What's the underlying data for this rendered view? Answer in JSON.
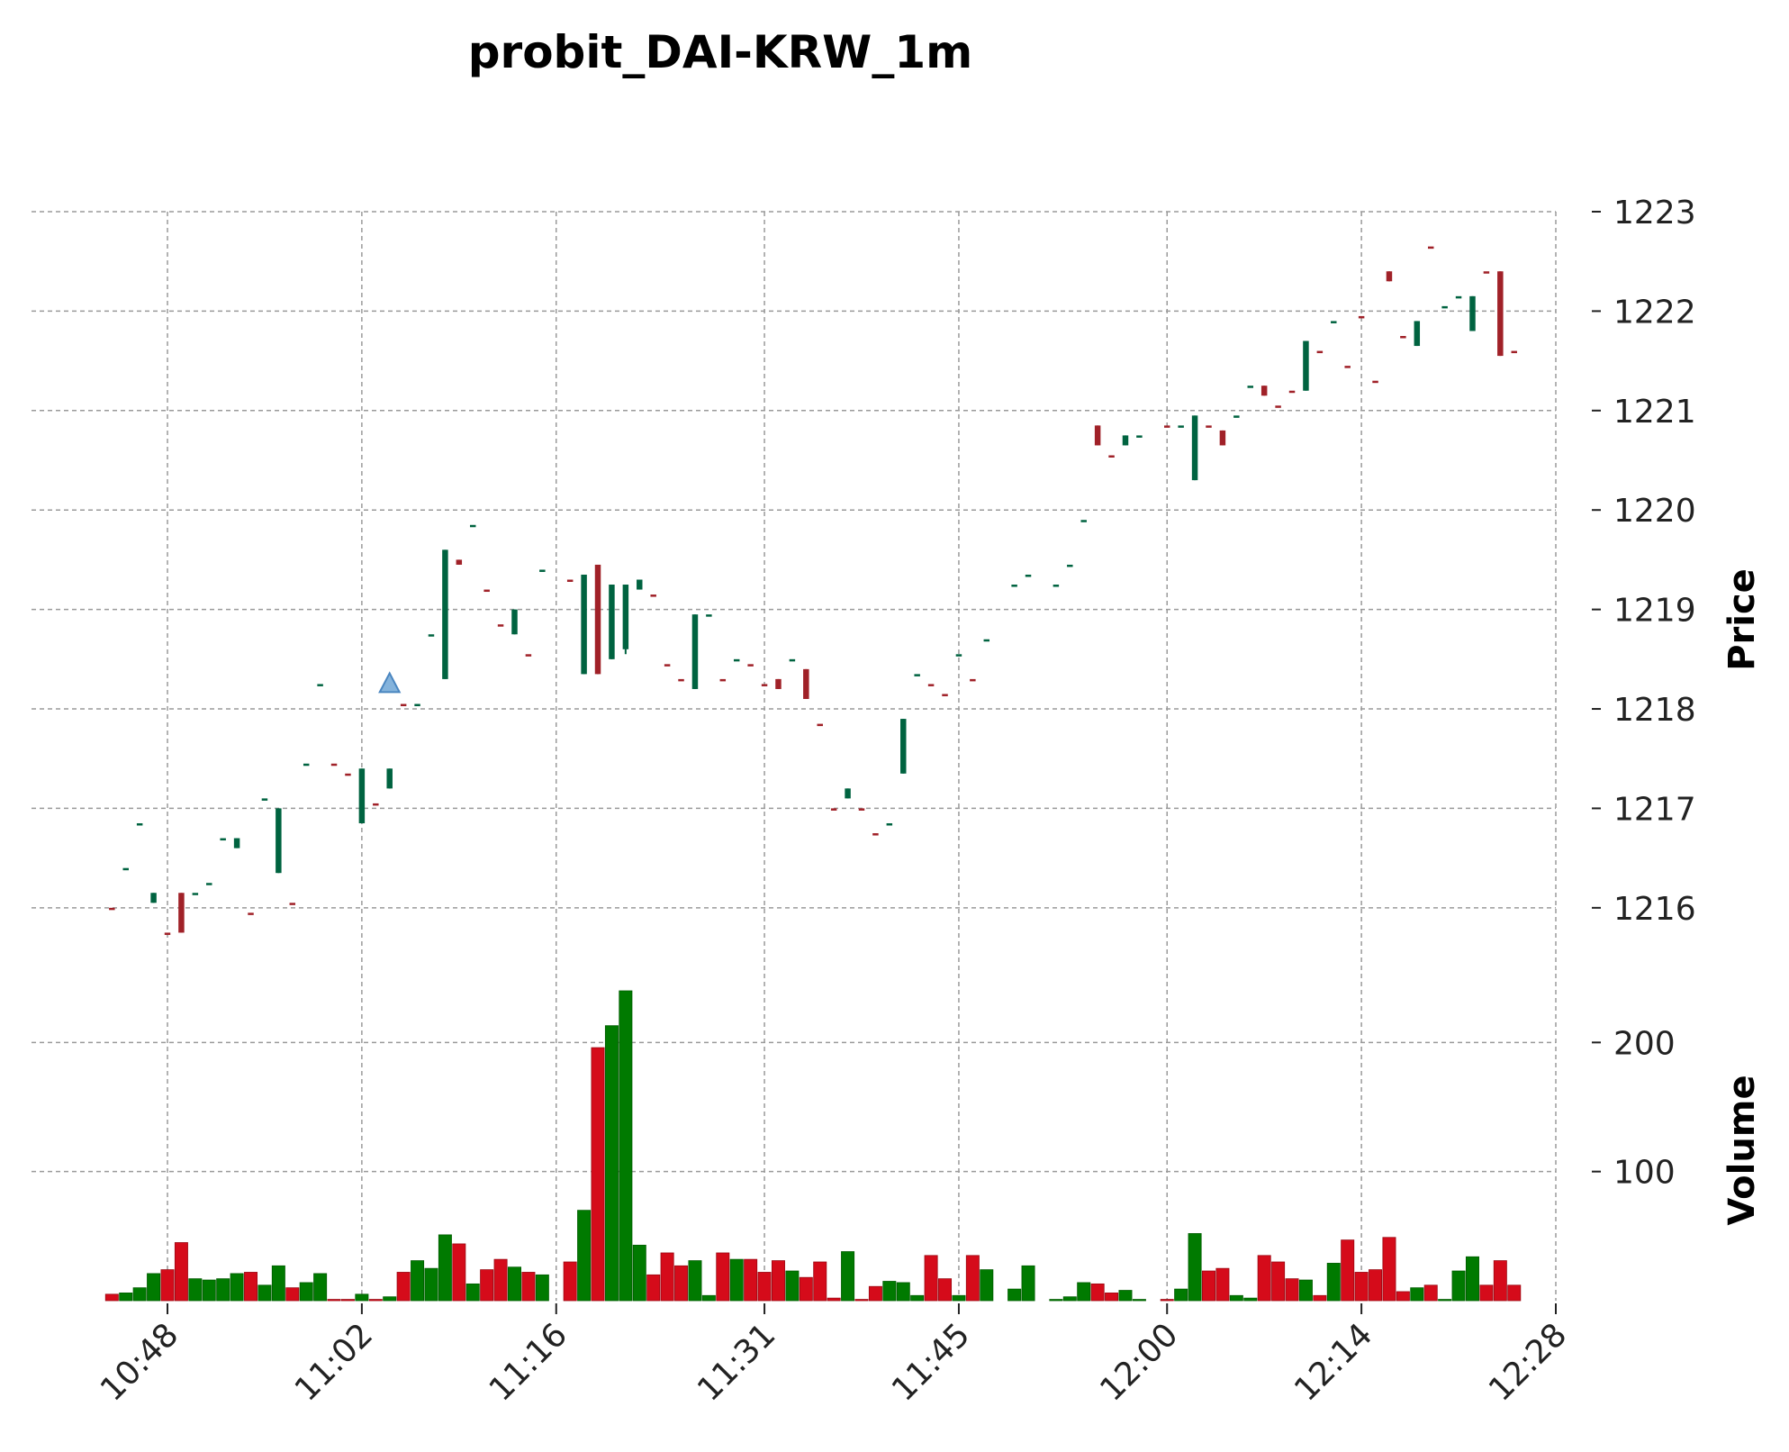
{
  "chart_data": {
    "type": "candlestick",
    "title": "probit_DAI-KRW_1m",
    "ylabel_price": "Price",
    "ylabel_volume": "Volume",
    "price_ylim": [
      1215.6,
      1223.0
    ],
    "volume_ylim": [
      0,
      240
    ],
    "price_ticks": [
      "1216",
      "1217",
      "1218",
      "1219",
      "1220",
      "1221",
      "1222",
      "1223"
    ],
    "volume_ticks": [
      "100",
      "200"
    ],
    "x_ticks": [
      "10:48",
      "11:02",
      "11:16",
      "11:31",
      "11:45",
      "12:00",
      "12:14",
      "12:28"
    ],
    "x_tick_minutes": [
      648,
      662,
      676,
      691,
      705,
      720,
      734,
      748
    ],
    "grid": true,
    "colors": {
      "up": "#006340",
      "down": "#a02128",
      "vol_up": "#007a00",
      "vol_down": "#d50b1a",
      "marker": "#6fa6d6"
    },
    "marker": {
      "type": "triangle-up",
      "time": "11:04",
      "price": 1218.25
    },
    "candles": [
      [
        "10:44",
        1216,
        1216,
        1216,
        1216,
        5,
        "d"
      ],
      [
        "10:45",
        1216.4,
        1216.4,
        1216.4,
        1216.4,
        6,
        "u"
      ],
      [
        "10:46",
        1216.85,
        1216.85,
        1216.85,
        1216.85,
        10,
        "u"
      ],
      [
        "10:47",
        1216.05,
        1216.15,
        1216.05,
        1216.15,
        21,
        "u"
      ],
      [
        "10:48",
        1215.75,
        1215.75,
        1215.75,
        1215.75,
        24,
        "d"
      ],
      [
        "10:49",
        1216.15,
        1216.15,
        1215.75,
        1215.75,
        45,
        "d"
      ],
      [
        "10:50",
        1216.15,
        1216.15,
        1216.15,
        1216.15,
        17,
        "u"
      ],
      [
        "10:51",
        1216.25,
        1216.25,
        1216.25,
        1216.25,
        16,
        "u"
      ],
      [
        "10:52",
        1216.7,
        1216.7,
        1216.7,
        1216.7,
        17,
        "u"
      ],
      [
        "10:53",
        1216.6,
        1216.7,
        1216.6,
        1216.7,
        21,
        "u"
      ],
      [
        "10:54",
        1215.95,
        1215.95,
        1215.95,
        1215.95,
        22,
        "d"
      ],
      [
        "10:55",
        1217.1,
        1217.1,
        1217.1,
        1217.1,
        12,
        "u"
      ],
      [
        "10:56",
        1216.35,
        1217.0,
        1216.35,
        1217.0,
        27,
        "u"
      ],
      [
        "10:57",
        1216.05,
        1216.05,
        1216.05,
        1216.05,
        10,
        "d"
      ],
      [
        "10:58",
        1217.45,
        1217.45,
        1217.45,
        1217.45,
        14,
        "u"
      ],
      [
        "10:59",
        1218.25,
        1218.25,
        1218.25,
        1218.25,
        21,
        "u"
      ],
      [
        "11:00",
        1217.45,
        1217.45,
        1217.45,
        1217.45,
        1,
        "d"
      ],
      [
        "11:01",
        1217.35,
        1217.35,
        1217.35,
        1217.35,
        1,
        "d"
      ],
      [
        "11:02",
        1216.85,
        1217.4,
        1216.85,
        1217.4,
        5,
        "u"
      ],
      [
        "11:03",
        1217.05,
        1217.05,
        1217.05,
        1217.05,
        1,
        "d"
      ],
      [
        "11:04",
        1217.2,
        1217.4,
        1217.2,
        1217.4,
        3,
        "u"
      ],
      [
        "11:05",
        1218.05,
        1218.05,
        1218.05,
        1218.05,
        22,
        "d"
      ],
      [
        "11:06",
        1218.05,
        1218.05,
        1218.05,
        1218.05,
        31,
        "u"
      ],
      [
        "11:07",
        1218.75,
        1218.75,
        1218.75,
        1218.75,
        25,
        "u"
      ],
      [
        "11:08",
        1218.3,
        1219.6,
        1218.3,
        1219.6,
        51,
        "u"
      ],
      [
        "11:09",
        1219.45,
        1219.5,
        1219.45,
        1219.5,
        44,
        "d"
      ],
      [
        "11:10",
        1219.85,
        1219.85,
        1219.85,
        1219.85,
        13,
        "u"
      ],
      [
        "11:11",
        1219.2,
        1219.2,
        1219.2,
        1219.2,
        24,
        "d"
      ],
      [
        "11:12",
        1218.85,
        1218.85,
        1218.85,
        1218.85,
        32,
        "d"
      ],
      [
        "11:13",
        1218.75,
        1219.0,
        1218.75,
        1219.0,
        26,
        "u"
      ],
      [
        "11:14",
        1218.55,
        1218.55,
        1218.55,
        1218.55,
        22,
        "d"
      ],
      [
        "11:15",
        1219.4,
        1219.4,
        1219.4,
        1219.4,
        20,
        "u"
      ],
      [
        "11:17",
        1219.3,
        1219.3,
        1219.3,
        1219.3,
        30,
        "d"
      ],
      [
        "11:18",
        1218.35,
        1219.35,
        1218.35,
        1219.35,
        70,
        "u"
      ],
      [
        "11:19",
        1219.45,
        1219.45,
        1218.35,
        1218.35,
        196,
        "d"
      ],
      [
        "11:20",
        1218.5,
        1219.25,
        1218.5,
        1219.25,
        213,
        "u"
      ],
      [
        "11:21",
        1219.25,
        1219.25,
        1218.55,
        1218.6,
        240,
        "u"
      ],
      [
        "11:22",
        1219.3,
        1219.3,
        1219.2,
        1219.2,
        43,
        "u"
      ],
      [
        "11:23",
        1219.15,
        1219.15,
        1219.15,
        1219.15,
        20,
        "d"
      ],
      [
        "11:24",
        1218.45,
        1218.45,
        1218.45,
        1218.45,
        37,
        "d"
      ],
      [
        "11:25",
        1218.3,
        1218.3,
        1218.3,
        1218.3,
        27,
        "d"
      ],
      [
        "11:26",
        1218.2,
        1218.95,
        1218.2,
        1218.95,
        31,
        "u"
      ],
      [
        "11:27",
        1218.95,
        1218.95,
        1218.95,
        1218.95,
        4,
        "u"
      ],
      [
        "11:28",
        1218.3,
        1218.3,
        1218.3,
        1218.3,
        37,
        "d"
      ],
      [
        "11:29",
        1218.5,
        1218.5,
        1218.5,
        1218.5,
        32,
        "u"
      ],
      [
        "11:30",
        1218.45,
        1218.45,
        1218.45,
        1218.45,
        32,
        "d"
      ],
      [
        "11:31",
        1218.25,
        1218.25,
        1218.25,
        1218.25,
        22,
        "d"
      ],
      [
        "11:32",
        1218.3,
        1218.3,
        1218.2,
        1218.2,
        31,
        "d"
      ],
      [
        "11:33",
        1218.5,
        1218.5,
        1218.5,
        1218.5,
        23,
        "u"
      ],
      [
        "11:34",
        1218.4,
        1218.4,
        1218.1,
        1218.1,
        18,
        "d"
      ],
      [
        "11:35",
        1217.85,
        1217.85,
        1217.85,
        1217.85,
        30,
        "d"
      ],
      [
        "11:36",
        1217.0,
        1217.0,
        1217.0,
        1217.0,
        2,
        "d"
      ],
      [
        "11:37",
        1217.2,
        1217.2,
        1217.1,
        1217.1,
        38,
        "u"
      ],
      [
        "11:38",
        1217.0,
        1217.0,
        1217.0,
        1217.0,
        1,
        "d"
      ],
      [
        "11:39",
        1216.75,
        1216.75,
        1216.75,
        1216.75,
        11,
        "d"
      ],
      [
        "11:40",
        1216.85,
        1216.85,
        1216.85,
        1216.85,
        15,
        "u"
      ],
      [
        "11:41",
        1217.35,
        1217.9,
        1217.35,
        1217.9,
        14,
        "u"
      ],
      [
        "11:42",
        1218.35,
        1218.35,
        1218.35,
        1218.35,
        4,
        "u"
      ],
      [
        "11:43",
        1218.25,
        1218.25,
        1218.25,
        1218.25,
        35,
        "d"
      ],
      [
        "11:44",
        1218.15,
        1218.15,
        1218.15,
        1218.15,
        17,
        "d"
      ],
      [
        "11:45",
        1218.55,
        1218.55,
        1218.55,
        1218.55,
        4,
        "u"
      ],
      [
        "11:46",
        1218.3,
        1218.3,
        1218.3,
        1218.3,
        35,
        "d"
      ],
      [
        "11:47",
        1218.7,
        1218.7,
        1218.7,
        1218.7,
        24,
        "u"
      ],
      [
        "11:49",
        1219.25,
        1219.25,
        1219.25,
        1219.25,
        9,
        "u"
      ],
      [
        "11:50",
        1219.35,
        1219.35,
        1219.35,
        1219.35,
        27,
        "u"
      ],
      [
        "11:52",
        1219.25,
        1219.25,
        1219.25,
        1219.25,
        1,
        "u"
      ],
      [
        "11:53",
        1219.45,
        1219.45,
        1219.45,
        1219.45,
        3,
        "u"
      ],
      [
        "11:54",
        1219.9,
        1219.9,
        1219.9,
        1219.9,
        14,
        "u"
      ],
      [
        "11:55",
        1220.85,
        1220.85,
        1220.65,
        1220.65,
        13,
        "d"
      ],
      [
        "11:56",
        1220.55,
        1220.55,
        1220.55,
        1220.55,
        6,
        "d"
      ],
      [
        "11:57",
        1220.65,
        1220.75,
        1220.65,
        1220.75,
        8,
        "u"
      ],
      [
        "11:58",
        1220.75,
        1220.75,
        1220.75,
        1220.75,
        1,
        "u"
      ],
      [
        "12:00",
        1220.85,
        1220.85,
        1220.85,
        1220.85,
        1,
        "d"
      ],
      [
        "12:01",
        1220.85,
        1220.85,
        1220.85,
        1220.85,
        9,
        "u"
      ],
      [
        "12:02",
        1220.3,
        1220.95,
        1220.3,
        1220.95,
        52,
        "u"
      ],
      [
        "12:03",
        1220.85,
        1220.85,
        1220.85,
        1220.85,
        23,
        "d"
      ],
      [
        "12:04",
        1220.8,
        1220.8,
        1220.65,
        1220.65,
        25,
        "d"
      ],
      [
        "12:05",
        1220.95,
        1220.95,
        1220.95,
        1220.95,
        4,
        "u"
      ],
      [
        "12:06",
        1221.25,
        1221.25,
        1221.25,
        1221.25,
        2,
        "u"
      ],
      [
        "12:07",
        1221.15,
        1221.25,
        1221.15,
        1221.25,
        35,
        "d"
      ],
      [
        "12:08",
        1221.05,
        1221.05,
        1221.05,
        1221.05,
        30,
        "d"
      ],
      [
        "12:09",
        1221.2,
        1221.2,
        1221.2,
        1221.2,
        17,
        "d"
      ],
      [
        "12:10",
        1221.2,
        1221.7,
        1221.2,
        1221.7,
        16,
        "u"
      ],
      [
        "12:11",
        1221.6,
        1221.6,
        1221.6,
        1221.6,
        4,
        "d"
      ],
      [
        "12:12",
        1221.9,
        1221.9,
        1221.9,
        1221.9,
        29,
        "u"
      ],
      [
        "12:13",
        1221.45,
        1221.45,
        1221.45,
        1221.45,
        47,
        "d"
      ],
      [
        "12:14",
        1221.95,
        1221.95,
        1221.95,
        1221.95,
        22,
        "d"
      ],
      [
        "12:15",
        1221.3,
        1221.3,
        1221.3,
        1221.3,
        24,
        "d"
      ],
      [
        "12:16",
        1222.4,
        1222.4,
        1222.3,
        1222.3,
        49,
        "d"
      ],
      [
        "12:17",
        1221.75,
        1221.75,
        1221.75,
        1221.75,
        7,
        "d"
      ],
      [
        "12:18",
        1221.65,
        1221.9,
        1221.65,
        1221.9,
        10,
        "u"
      ],
      [
        "12:19",
        1222.65,
        1222.65,
        1222.65,
        1222.65,
        12,
        "d"
      ],
      [
        "12:20",
        1222.05,
        1222.05,
        1222.05,
        1222.05,
        1,
        "u"
      ],
      [
        "12:21",
        1222.15,
        1222.15,
        1222.15,
        1222.15,
        23,
        "u"
      ],
      [
        "12:22",
        1221.8,
        1222.15,
        1221.8,
        1222.15,
        34,
        "u"
      ],
      [
        "12:23",
        1222.4,
        1222.4,
        1222.4,
        1222.4,
        12,
        "d"
      ],
      [
        "12:24",
        1222.4,
        1222.4,
        1221.55,
        1221.55,
        31,
        "d"
      ],
      [
        "12:25",
        1221.6,
        1221.6,
        1221.6,
        1221.6,
        12,
        "d"
      ]
    ]
  }
}
